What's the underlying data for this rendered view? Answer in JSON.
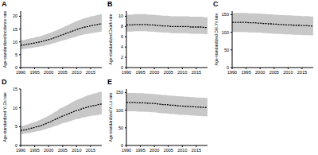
{
  "chart_data": [
    {
      "type": "line",
      "title": "A",
      "y_label": "Age-standardized incidence rate",
      "color": "#000000",
      "line_style": "dashed",
      "x": [
        1990,
        1991,
        1992,
        1993,
        1994,
        1995,
        1996,
        1997,
        1998,
        1999,
        2000,
        2001,
        2002,
        2003,
        2004,
        2005,
        2006,
        2007,
        2008,
        2009,
        2010,
        2011,
        2012,
        2013,
        2014,
        2015,
        2016,
        2017,
        2018,
        2019
      ],
      "values": [
        8.7,
        8.8,
        9.0,
        9.2,
        9.4,
        9.6,
        9.8,
        10.0,
        10.3,
        10.6,
        10.9,
        11.2,
        11.6,
        12.0,
        12.4,
        12.8,
        13.2,
        13.6,
        14.0,
        14.4,
        14.8,
        15.2,
        15.5,
        15.8,
        16.0,
        16.3,
        16.5,
        16.7,
        16.9,
        17.1
      ],
      "lower": [
        7.1,
        7.2,
        7.4,
        7.5,
        7.7,
        7.9,
        8.0,
        8.2,
        8.4,
        8.7,
        8.9,
        9.2,
        9.5,
        9.8,
        10.2,
        10.5,
        10.8,
        11.2,
        11.5,
        11.8,
        12.1,
        12.5,
        12.7,
        13.0,
        13.1,
        13.4,
        13.5,
        13.7,
        13.9,
        14.0
      ],
      "upper": [
        10.6,
        10.7,
        11.0,
        11.2,
        11.5,
        11.7,
        12.0,
        12.2,
        12.6,
        12.9,
        13.3,
        13.7,
        14.2,
        14.6,
        15.1,
        15.6,
        16.1,
        16.6,
        17.1,
        17.6,
        18.1,
        18.5,
        18.9,
        19.3,
        19.5,
        19.9,
        20.1,
        20.4,
        20.6,
        20.9
      ],
      "xlim": [
        1990,
        2019
      ],
      "xticks": [
        1990,
        1995,
        2000,
        2005,
        2010,
        2015
      ],
      "ylim": [
        0,
        22
      ],
      "yticks": [
        0,
        5,
        10,
        15,
        20
      ]
    },
    {
      "type": "line",
      "title": "B",
      "y_label": "Age-standardized Death rate",
      "color": "#000000",
      "line_style": "dashed",
      "x": [
        1990,
        1991,
        1992,
        1993,
        1994,
        1995,
        1996,
        1997,
        1998,
        1999,
        2000,
        2001,
        2002,
        2003,
        2004,
        2005,
        2006,
        2007,
        2008,
        2009,
        2010,
        2011,
        2012,
        2013,
        2014,
        2015,
        2016,
        2017,
        2018,
        2019
      ],
      "values": [
        8.3,
        8.3,
        8.3,
        8.4,
        8.4,
        8.4,
        8.4,
        8.4,
        8.3,
        8.3,
        8.3,
        8.2,
        8.2,
        8.1,
        8.1,
        8.1,
        8.0,
        8.0,
        8.0,
        8.0,
        8.0,
        8.0,
        8.0,
        7.9,
        7.9,
        7.9,
        7.9,
        7.9,
        7.8,
        7.8
      ],
      "lower": [
        7.0,
        7.0,
        7.0,
        7.1,
        7.1,
        7.1,
        7.1,
        7.1,
        7.0,
        7.0,
        7.0,
        6.9,
        6.9,
        6.8,
        6.8,
        6.8,
        6.7,
        6.7,
        6.7,
        6.7,
        6.7,
        6.7,
        6.7,
        6.6,
        6.6,
        6.6,
        6.6,
        6.6,
        6.5,
        6.5
      ],
      "upper": [
        10.3,
        10.3,
        10.3,
        10.4,
        10.4,
        10.4,
        10.4,
        10.4,
        10.3,
        10.3,
        10.3,
        10.2,
        10.2,
        10.1,
        10.1,
        10.1,
        10.0,
        10.0,
        10.0,
        10.0,
        10.0,
        10.0,
        10.0,
        9.9,
        9.9,
        9.9,
        9.9,
        9.9,
        9.8,
        9.8
      ],
      "xlim": [
        1990,
        2019
      ],
      "xticks": [
        1990,
        1995,
        2000,
        2005,
        2010,
        2015
      ],
      "ylim": [
        0,
        11
      ],
      "yticks": [
        0,
        2,
        4,
        6,
        8,
        10
      ]
    },
    {
      "type": "line",
      "title": "C",
      "y_label": "Age-standardized DALYs rate",
      "color": "#000000",
      "line_style": "dashed",
      "x": [
        1990,
        1991,
        1992,
        1993,
        1994,
        1995,
        1996,
        1997,
        1998,
        1999,
        2000,
        2001,
        2002,
        2003,
        2004,
        2005,
        2006,
        2007,
        2008,
        2009,
        2010,
        2011,
        2012,
        2013,
        2014,
        2015,
        2016,
        2017,
        2018,
        2019
      ],
      "values": [
        128,
        128,
        128,
        128,
        128,
        128,
        127,
        127,
        127,
        126,
        126,
        125,
        125,
        124,
        124,
        123,
        123,
        122,
        122,
        121,
        121,
        121,
        120,
        120,
        120,
        119,
        119,
        119,
        118,
        118
      ],
      "lower": [
        101,
        101,
        101,
        101,
        101,
        101,
        100,
        100,
        100,
        99,
        99,
        98,
        98,
        97,
        97,
        96,
        96,
        95,
        95,
        94,
        94,
        94,
        93,
        93,
        93,
        92,
        92,
        92,
        91,
        91
      ],
      "upper": [
        155,
        155,
        155,
        155,
        155,
        155,
        154,
        154,
        154,
        153,
        153,
        152,
        152,
        151,
        151,
        150,
        150,
        149,
        149,
        148,
        148,
        148,
        147,
        147,
        147,
        146,
        146,
        146,
        145,
        145
      ],
      "xlim": [
        1990,
        2019
      ],
      "xticks": [
        1990,
        1995,
        2000,
        2005,
        2010,
        2015
      ],
      "ylim": [
        0,
        160
      ],
      "yticks": [
        0,
        50,
        100,
        150
      ]
    },
    {
      "type": "line",
      "title": "D",
      "y_label": "Age-standardized YLDs rate",
      "color": "#000000",
      "line_style": "dashed",
      "x": [
        1990,
        1991,
        1992,
        1993,
        1994,
        1995,
        1996,
        1997,
        1998,
        1999,
        2000,
        2001,
        2002,
        2003,
        2004,
        2005,
        2006,
        2007,
        2008,
        2009,
        2010,
        2011,
        2012,
        2013,
        2014,
        2015,
        2016,
        2017,
        2018,
        2019
      ],
      "values": [
        4.0,
        4.1,
        4.2,
        4.4,
        4.6,
        4.8,
        5.0,
        5.2,
        5.5,
        5.8,
        6.1,
        6.4,
        6.8,
        7.1,
        7.5,
        7.8,
        8.1,
        8.4,
        8.7,
        9.0,
        9.3,
        9.5,
        9.8,
        10.0,
        10.2,
        10.4,
        10.6,
        10.7,
        10.9,
        11.0
      ],
      "lower": [
        3.0,
        3.1,
        3.2,
        3.3,
        3.5,
        3.6,
        3.8,
        3.9,
        4.1,
        4.4,
        4.6,
        4.8,
        5.1,
        5.3,
        5.6,
        5.9,
        6.1,
        6.3,
        6.5,
        6.8,
        7.0,
        7.1,
        7.4,
        7.5,
        7.7,
        7.8,
        8.0,
        8.0,
        8.2,
        8.3
      ],
      "upper": [
        5.2,
        5.3,
        5.5,
        5.7,
        6.0,
        6.2,
        6.5,
        6.8,
        7.2,
        7.5,
        7.9,
        8.3,
        8.8,
        9.2,
        9.8,
        10.1,
        10.5,
        10.9,
        11.3,
        11.7,
        12.1,
        12.4,
        12.7,
        13.0,
        13.3,
        13.5,
        13.8,
        13.9,
        14.2,
        14.3
      ],
      "xlim": [
        1990,
        2019
      ],
      "xticks": [
        1990,
        1995,
        2000,
        2005,
        2010,
        2015
      ],
      "ylim": [
        0,
        15
      ],
      "yticks": [
        0,
        5,
        10,
        15
      ]
    },
    {
      "type": "line",
      "title": "E",
      "y_label": "Age-standardized YLLs rate",
      "color": "#000000",
      "line_style": "dashed",
      "x": [
        1990,
        1991,
        1992,
        1993,
        1994,
        1995,
        1996,
        1997,
        1998,
        1999,
        2000,
        2001,
        2002,
        2003,
        2004,
        2005,
        2006,
        2007,
        2008,
        2009,
        2010,
        2011,
        2012,
        2013,
        2014,
        2015,
        2016,
        2017,
        2018,
        2019
      ],
      "values": [
        122,
        122,
        122,
        122,
        121,
        121,
        121,
        120,
        120,
        119,
        119,
        118,
        117,
        116,
        116,
        115,
        114,
        114,
        113,
        112,
        112,
        111,
        111,
        110,
        110,
        109,
        109,
        108,
        108,
        107
      ],
      "lower": [
        97,
        97,
        97,
        97,
        96,
        96,
        96,
        95,
        95,
        94,
        94,
        93,
        92,
        91,
        91,
        90,
        89,
        89,
        88,
        87,
        87,
        86,
        86,
        85,
        85,
        84,
        84,
        83,
        83,
        82
      ],
      "upper": [
        149,
        149,
        149,
        149,
        148,
        148,
        148,
        147,
        147,
        146,
        146,
        145,
        144,
        143,
        143,
        142,
        141,
        141,
        140,
        139,
        139,
        138,
        138,
        137,
        137,
        136,
        136,
        135,
        135,
        134
      ],
      "xlim": [
        1990,
        2019
      ],
      "xticks": [
        1990,
        1995,
        2000,
        2005,
        2010,
        2015
      ],
      "ylim": [
        0,
        160
      ],
      "yticks": [
        0,
        50,
        100,
        150
      ]
    }
  ]
}
